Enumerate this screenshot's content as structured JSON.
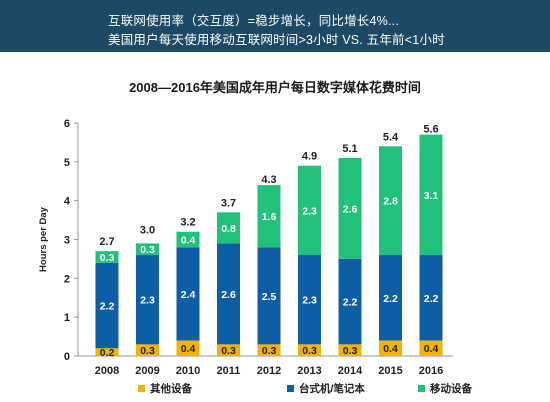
{
  "header": {
    "line1": "互联网使用率（交互度）=稳步增长，同比增长4%...",
    "line2": "美国用户每天使用移动互联网时间>3小时   VS.  五年前<1小时"
  },
  "colors": {
    "header_bg": "#1c4a66",
    "other": "#f2b200",
    "desktop": "#0e5ea6",
    "mobile": "#21c17a"
  },
  "chart_data": {
    "type": "bar",
    "stacked": true,
    "title": "2008—2016年美国成年用户每日数字媒体花费时间",
    "xlabel": "",
    "ylabel": "Hours per Day",
    "ylim": [
      0,
      6
    ],
    "yticks": [
      0,
      1,
      2,
      3,
      4,
      5,
      6
    ],
    "grid": false,
    "legend_position": "bottom",
    "categories": [
      "2008",
      "2009",
      "2010",
      "2011",
      "2012",
      "2013",
      "2014",
      "2015",
      "2016"
    ],
    "series": [
      {
        "name": "其他设备",
        "color": "#f2b200",
        "values": [
          0.2,
          0.3,
          0.4,
          0.3,
          0.3,
          0.3,
          0.3,
          0.4,
          0.4
        ]
      },
      {
        "name": "台式机/笔记本",
        "color": "#0e5ea6",
        "values": [
          2.2,
          2.3,
          2.4,
          2.6,
          2.5,
          2.3,
          2.2,
          2.2,
          2.2
        ]
      },
      {
        "name": "移动设备",
        "color": "#21c17a",
        "values": [
          0.3,
          0.3,
          0.4,
          0.8,
          1.6,
          2.3,
          2.6,
          2.8,
          3.1
        ]
      }
    ],
    "totals": [
      2.7,
      3.0,
      3.2,
      3.7,
      4.3,
      4.9,
      5.1,
      5.4,
      5.6
    ]
  }
}
